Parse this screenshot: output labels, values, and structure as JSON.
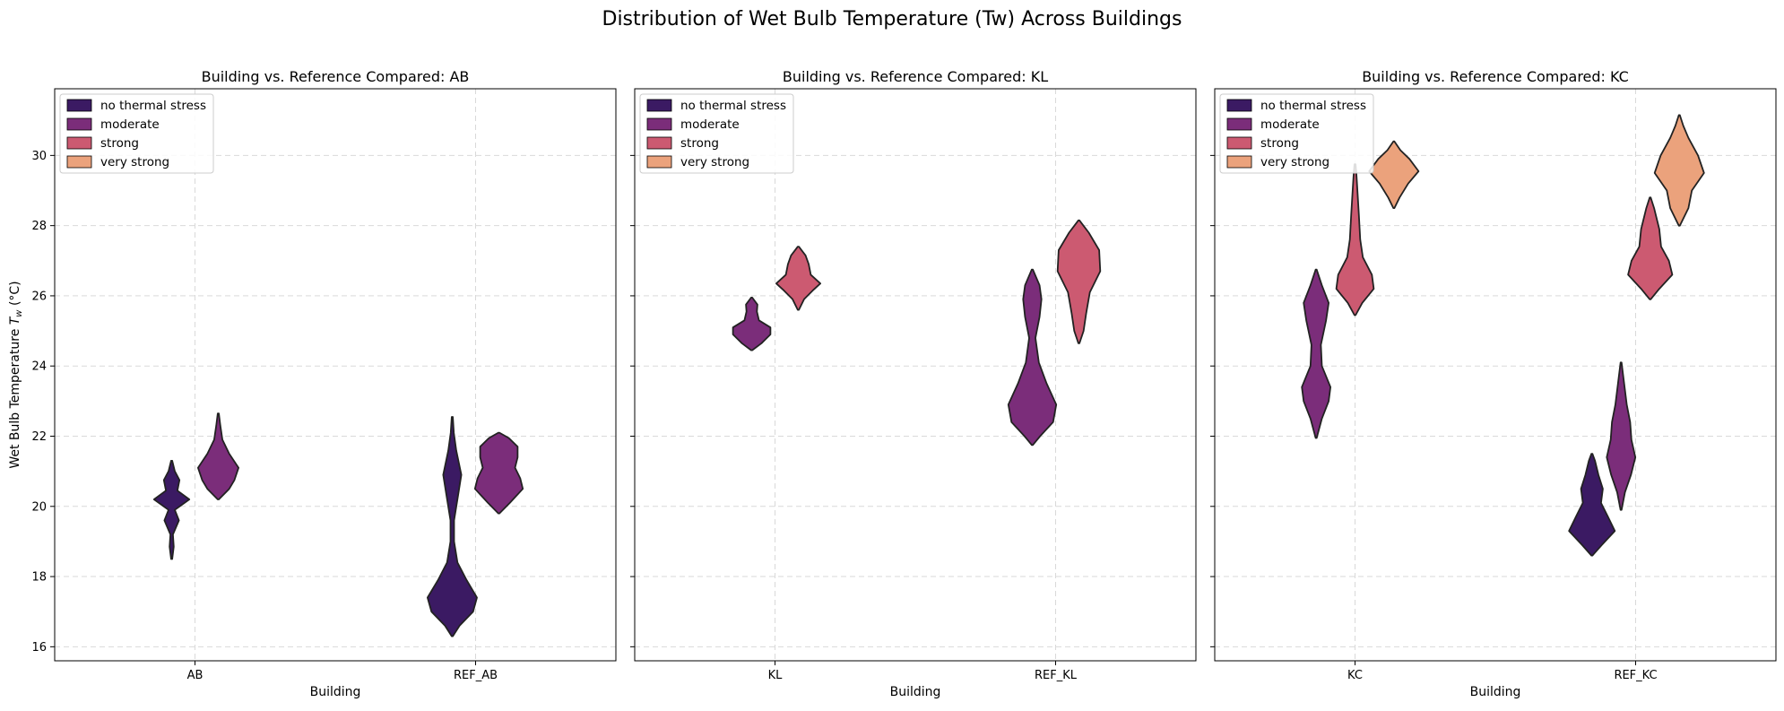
{
  "figure": {
    "title": "Distribution of Wet Bulb Temperature (Tw) Across Buildings"
  },
  "colors": {
    "no thermal stress": "#3b1a63",
    "moderate": "#7b2d7a",
    "strong": "#cc5a71",
    "very strong": "#eba27c",
    "outline": "#222222"
  },
  "chart_data": [
    {
      "type": "violin",
      "title": "Building vs. Reference Compared: AB",
      "xlabel": "Building",
      "ylabel": "Wet Bulb Temperature T_w (°C)",
      "ylim": [
        15.6,
        31.9
      ],
      "yticks": [
        16,
        18,
        20,
        22,
        24,
        26,
        28,
        30
      ],
      "categories": [
        "AB",
        "REF_AB"
      ],
      "grid": true,
      "legend": {
        "placement": "top-left",
        "entries": [
          "no thermal stress",
          "moderate",
          "strong",
          "very strong"
        ]
      },
      "violins": [
        {
          "category": "AB",
          "group": "no thermal stress",
          "dodge": 0,
          "profile": [
            [
              18.5,
              0.02
            ],
            [
              18.85,
              0.08
            ],
            [
              19.2,
              0.05
            ],
            [
              19.6,
              0.28
            ],
            [
              19.9,
              0.12
            ],
            [
              20.2,
              0.68
            ],
            [
              20.45,
              0.22
            ],
            [
              20.75,
              0.3
            ],
            [
              21.0,
              0.12
            ],
            [
              21.3,
              0.02
            ]
          ]
        },
        {
          "category": "AB",
          "group": "moderate",
          "dodge": 1,
          "profile": [
            [
              20.2,
              0.02
            ],
            [
              20.5,
              0.42
            ],
            [
              20.75,
              0.62
            ],
            [
              21.1,
              0.78
            ],
            [
              21.5,
              0.42
            ],
            [
              21.9,
              0.16
            ],
            [
              22.3,
              0.08
            ],
            [
              22.65,
              0.02
            ]
          ]
        },
        {
          "category": "REF_AB",
          "group": "no thermal stress",
          "dodge": 0,
          "profile": [
            [
              16.3,
              0.02
            ],
            [
              16.6,
              0.28
            ],
            [
              17.0,
              0.8
            ],
            [
              17.4,
              0.95
            ],
            [
              17.9,
              0.55
            ],
            [
              18.4,
              0.2
            ],
            [
              19.0,
              0.07
            ],
            [
              19.6,
              0.07
            ],
            [
              20.3,
              0.22
            ],
            [
              20.9,
              0.35
            ],
            [
              21.6,
              0.15
            ],
            [
              22.1,
              0.06
            ],
            [
              22.55,
              0.02
            ]
          ]
        },
        {
          "category": "REF_AB",
          "group": "moderate",
          "dodge": 1,
          "profile": [
            [
              19.8,
              0.02
            ],
            [
              20.1,
              0.42
            ],
            [
              20.5,
              0.92
            ],
            [
              20.8,
              0.82
            ],
            [
              21.1,
              0.62
            ],
            [
              21.4,
              0.72
            ],
            [
              21.7,
              0.72
            ],
            [
              21.95,
              0.38
            ],
            [
              22.1,
              0.02
            ]
          ]
        }
      ]
    },
    {
      "type": "violin",
      "title": "Building vs. Reference Compared: KL",
      "xlabel": "Building",
      "ylabel": "",
      "ylim": [
        15.6,
        31.9
      ],
      "yticks": [
        16,
        18,
        20,
        22,
        24,
        26,
        28,
        30
      ],
      "categories": [
        "KL",
        "REF_KL"
      ],
      "grid": true,
      "legend": {
        "placement": "top-left",
        "entries": [
          "no thermal stress",
          "moderate",
          "strong",
          "very strong"
        ]
      },
      "violins": [
        {
          "category": "KL",
          "group": "moderate",
          "dodge": 0,
          "profile": [
            [
              24.45,
              0.02
            ],
            [
              24.65,
              0.38
            ],
            [
              24.9,
              0.72
            ],
            [
              25.1,
              0.72
            ],
            [
              25.3,
              0.28
            ],
            [
              25.55,
              0.2
            ],
            [
              25.75,
              0.22
            ],
            [
              25.95,
              0.02
            ]
          ]
        },
        {
          "category": "KL",
          "group": "strong",
          "dodge": 1,
          "profile": [
            [
              25.6,
              0.02
            ],
            [
              25.9,
              0.22
            ],
            [
              26.15,
              0.55
            ],
            [
              26.35,
              0.85
            ],
            [
              26.6,
              0.48
            ],
            [
              26.9,
              0.4
            ],
            [
              27.15,
              0.28
            ],
            [
              27.4,
              0.02
            ]
          ]
        },
        {
          "category": "REF_KL",
          "group": "moderate",
          "dodge": 0,
          "profile": [
            [
              21.75,
              0.02
            ],
            [
              22.0,
              0.3
            ],
            [
              22.4,
              0.8
            ],
            [
              22.9,
              0.92
            ],
            [
              23.5,
              0.55
            ],
            [
              24.1,
              0.25
            ],
            [
              24.8,
              0.12
            ],
            [
              25.4,
              0.28
            ],
            [
              25.9,
              0.35
            ],
            [
              26.3,
              0.28
            ],
            [
              26.75,
              0.02
            ]
          ]
        },
        {
          "category": "REF_KL",
          "group": "strong",
          "dodge": 1,
          "profile": [
            [
              24.65,
              0.02
            ],
            [
              25.0,
              0.18
            ],
            [
              25.5,
              0.28
            ],
            [
              26.1,
              0.42
            ],
            [
              26.7,
              0.82
            ],
            [
              27.3,
              0.78
            ],
            [
              27.8,
              0.38
            ],
            [
              28.15,
              0.02
            ]
          ]
        }
      ]
    },
    {
      "type": "violin",
      "title": "Building vs. Reference Compared: KC",
      "xlabel": "Building",
      "ylabel": "",
      "ylim": [
        15.6,
        31.9
      ],
      "yticks": [
        16,
        18,
        20,
        22,
        24,
        26,
        28,
        30
      ],
      "categories": [
        "KC",
        "REF_KC"
      ],
      "grid": true,
      "legend": {
        "placement": "top-left",
        "entries": [
          "no thermal stress",
          "moderate",
          "strong",
          "very strong"
        ]
      },
      "violins": [
        {
          "category": "KC",
          "group": "moderate",
          "dodge": 0,
          "profile": [
            [
              21.95,
              0.02
            ],
            [
              22.5,
              0.22
            ],
            [
              23.0,
              0.48
            ],
            [
              23.4,
              0.55
            ],
            [
              24.0,
              0.22
            ],
            [
              24.6,
              0.18
            ],
            [
              25.3,
              0.38
            ],
            [
              25.8,
              0.48
            ],
            [
              26.3,
              0.22
            ],
            [
              26.75,
              0.02
            ]
          ]
        },
        {
          "category": "KC",
          "group": "strong",
          "dodge": 1,
          "profile": [
            [
              25.45,
              0.02
            ],
            [
              25.8,
              0.28
            ],
            [
              26.2,
              0.72
            ],
            [
              26.6,
              0.65
            ],
            [
              27.1,
              0.3
            ],
            [
              27.6,
              0.2
            ],
            [
              28.3,
              0.15
            ],
            [
              28.9,
              0.1
            ],
            [
              29.4,
              0.06
            ],
            [
              29.75,
              0.02
            ]
          ]
        },
        {
          "category": "KC",
          "group": "very strong",
          "dodge": 2,
          "profile": [
            [
              28.5,
              0.02
            ],
            [
              28.8,
              0.22
            ],
            [
              29.2,
              0.55
            ],
            [
              29.55,
              0.95
            ],
            [
              29.9,
              0.6
            ],
            [
              30.15,
              0.25
            ],
            [
              30.4,
              0.02
            ]
          ]
        },
        {
          "category": "REF_KC",
          "group": "no thermal stress",
          "dodge": 0,
          "profile": [
            [
              18.6,
              0.02
            ],
            [
              18.9,
              0.38
            ],
            [
              19.3,
              0.88
            ],
            [
              19.7,
              0.62
            ],
            [
              20.1,
              0.35
            ],
            [
              20.5,
              0.42
            ],
            [
              20.9,
              0.25
            ],
            [
              21.3,
              0.12
            ],
            [
              21.5,
              0.02
            ]
          ]
        },
        {
          "category": "REF_KC",
          "group": "moderate",
          "dodge": 1,
          "profile": [
            [
              19.9,
              0.02
            ],
            [
              20.4,
              0.15
            ],
            [
              20.9,
              0.38
            ],
            [
              21.4,
              0.55
            ],
            [
              21.9,
              0.4
            ],
            [
              22.4,
              0.35
            ],
            [
              22.9,
              0.22
            ],
            [
              23.5,
              0.12
            ],
            [
              24.1,
              0.02
            ]
          ]
        },
        {
          "category": "REF_KC",
          "group": "strong",
          "dodge": 2,
          "profile": [
            [
              25.9,
              0.02
            ],
            [
              26.2,
              0.35
            ],
            [
              26.6,
              0.85
            ],
            [
              27.0,
              0.72
            ],
            [
              27.4,
              0.42
            ],
            [
              27.9,
              0.35
            ],
            [
              28.5,
              0.15
            ],
            [
              28.8,
              0.02
            ]
          ]
        },
        {
          "category": "REF_KC",
          "group": "very strong",
          "dodge": 3,
          "profile": [
            [
              28.0,
              0.02
            ],
            [
              28.5,
              0.35
            ],
            [
              29.0,
              0.48
            ],
            [
              29.5,
              0.95
            ],
            [
              30.0,
              0.72
            ],
            [
              30.5,
              0.35
            ],
            [
              30.85,
              0.15
            ],
            [
              31.15,
              0.02
            ]
          ]
        }
      ]
    }
  ]
}
